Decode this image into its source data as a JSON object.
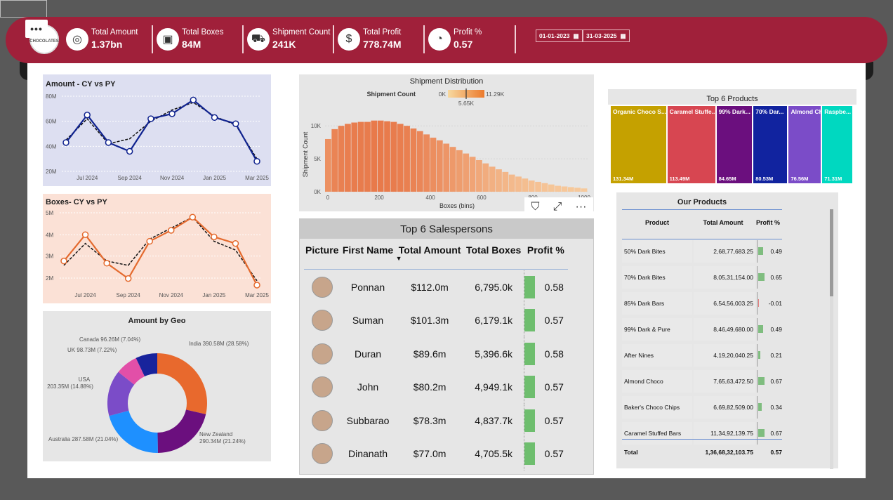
{
  "header": {
    "kpis": [
      {
        "title": "Total Amount",
        "value": "1.37bn",
        "icon": "coins-icon"
      },
      {
        "title": "Total Boxes",
        "value": "84M",
        "icon": "box-icon"
      },
      {
        "title": "Shipment Count",
        "value": "241K",
        "icon": "truck-icon"
      },
      {
        "title": "Total Profit",
        "value": "778.74M",
        "icon": "money-icon"
      },
      {
        "title": "Profit %",
        "value": "0.57",
        "icon": "gauge-icon"
      }
    ],
    "date_from": "01-01-2023",
    "date_to": "31-03-2025",
    "logo_text": "OME CHOCOLATES"
  },
  "amount_chart": {
    "title": "Amount - CY vs PY",
    "chart_data": {
      "type": "line",
      "categories": [
        "Jun 2024",
        "Jul 2024",
        "Aug 2024",
        "Sep 2024",
        "Oct 2024",
        "Nov 2024",
        "Dec 2024",
        "Jan 2025",
        "Feb 2025",
        "Mar 2025"
      ],
      "ylim": [
        20,
        80
      ],
      "yticks": [
        "20M",
        "40M",
        "60M",
        "80M"
      ],
      "xticks": [
        "Jul 2024",
        "Sep 2024",
        "Nov 2024",
        "Jan 2025",
        "Mar 2025"
      ],
      "series": [
        {
          "name": "CY",
          "values": [
            43,
            65,
            43,
            36,
            62,
            66,
            77,
            63,
            58,
            28
          ]
        },
        {
          "name": "PY",
          "values": [
            45,
            62,
            42,
            46,
            60,
            69,
            75,
            64,
            57,
            30
          ]
        }
      ]
    }
  },
  "boxes_chart": {
    "title": "Boxes- CY vs PY",
    "chart_data": {
      "type": "line",
      "categories": [
        "Jun 2024",
        "Jul 2024",
        "Aug 2024",
        "Sep 2024",
        "Oct 2024",
        "Nov 2024",
        "Dec 2024",
        "Jan 2025",
        "Feb 2025",
        "Mar 2025"
      ],
      "ylim": [
        1.7,
        5
      ],
      "yticks": [
        "2M",
        "3M",
        "4M",
        "5M"
      ],
      "xticks": [
        "Jul 2024",
        "Sep 2024",
        "Nov 2024",
        "Jan 2025",
        "Mar 2025"
      ],
      "series": [
        {
          "name": "CY",
          "values": [
            2.8,
            4.0,
            2.7,
            2.0,
            3.7,
            4.2,
            4.8,
            3.9,
            3.6,
            1.7
          ]
        },
        {
          "name": "PY",
          "values": [
            2.6,
            3.6,
            2.8,
            2.6,
            3.8,
            4.3,
            4.8,
            3.7,
            3.3,
            1.9
          ]
        }
      ]
    }
  },
  "geo_chart": {
    "title": "Amount by Geo",
    "chart_data": {
      "type": "pie",
      "slices": [
        {
          "name": "India",
          "label": "India 390.58M (28.58%)",
          "value": 390.58,
          "color": "#e8692d"
        },
        {
          "name": "New Zealand",
          "label": "New Zealand 290.34M (21.24%)",
          "value": 290.34,
          "color": "#6b0f7e"
        },
        {
          "name": "Australia",
          "label": "Australia 287.58M (21.04%)",
          "value": 287.58,
          "color": "#1e90ff"
        },
        {
          "name": "USA",
          "label": "USA 203.35M (14.88%)",
          "value": 203.35,
          "color": "#7b4cc8"
        },
        {
          "name": "UK",
          "label": "UK 98.73M (7.22%)",
          "value": 98.73,
          "color": "#e24fa8"
        },
        {
          "name": "Canada",
          "label": "Canada 96.26M (7.04%)",
          "value": 96.26,
          "color": "#18239c"
        }
      ]
    }
  },
  "shipment_chart": {
    "title": "Shipment Distribution",
    "legend_label": "Shipment Count",
    "legend_min": "0K",
    "legend_max": "11.29K",
    "legend_mid": "5.65K",
    "xlabel": "Boxes (bins)",
    "ylabel": "Shipment Count",
    "chart_data": {
      "type": "bar",
      "xticks": [
        "0",
        "200",
        "400",
        "600",
        "800",
        "1000"
      ],
      "yticks": [
        "0K",
        "5K",
        "10K"
      ],
      "ylim": [
        0,
        11.3
      ],
      "values": [
        8.0,
        9.5,
        10.0,
        10.3,
        10.5,
        10.6,
        10.6,
        10.8,
        10.8,
        10.7,
        10.6,
        10.3,
        10.0,
        9.6,
        9.2,
        8.7,
        8.2,
        7.8,
        7.3,
        6.8,
        6.3,
        5.8,
        5.3,
        4.8,
        4.3,
        3.8,
        3.4,
        3.0,
        2.6,
        2.3,
        2.0,
        1.7,
        1.5,
        1.3,
        1.1,
        0.9,
        0.8,
        0.7,
        0.6,
        0.5
      ]
    }
  },
  "top6_products": {
    "title": "Top 6 Products",
    "chart_data": {
      "type": "treemap",
      "items": [
        {
          "name": "Organic Choco S...",
          "value": 131.34,
          "label": "131.34M",
          "color": "#c5a100"
        },
        {
          "name": "Caramel Stuffe...",
          "value": 113.49,
          "label": "113.49M",
          "color": "#d74651"
        },
        {
          "name": "99% Dark...",
          "value": 84.65,
          "label": "84.65M",
          "color": "#6b0f7e"
        },
        {
          "name": "70% Dar...",
          "value": 80.53,
          "label": "80.53M",
          "color": "#11239f"
        },
        {
          "name": "Almond Ch...",
          "value": 76.56,
          "label": "76.56M",
          "color": "#7b4cc8"
        },
        {
          "name": "Raspbe...",
          "value": 71.31,
          "label": "71.31M",
          "color": "#00d8c0"
        }
      ]
    }
  },
  "salespersons": {
    "title": "Top 6 Salespersons",
    "columns": [
      "Picture",
      "First Name",
      "Total Amount",
      "Total Boxes",
      "Profit %"
    ],
    "rows": [
      {
        "name": "Ponnan",
        "amount": "$112.0m",
        "boxes": "6,795.0k",
        "profit": "0.58"
      },
      {
        "name": "Suman",
        "amount": "$101.3m",
        "boxes": "6,179.1k",
        "profit": "0.57"
      },
      {
        "name": "Duran",
        "amount": "$89.6m",
        "boxes": "5,396.6k",
        "profit": "0.58"
      },
      {
        "name": "John",
        "amount": "$80.2m",
        "boxes": "4,949.1k",
        "profit": "0.57"
      },
      {
        "name": "Subbarao",
        "amount": "$78.3m",
        "boxes": "4,837.7k",
        "profit": "0.57"
      },
      {
        "name": "Dinanath",
        "amount": "$77.0m",
        "boxes": "4,705.5k",
        "profit": "0.57"
      }
    ]
  },
  "products": {
    "title": "Our Products",
    "columns": [
      "Product",
      "Total Amount",
      "Profit %"
    ],
    "rows": [
      {
        "name": "50% Dark Bites",
        "amount": "2,68,77,683.25",
        "profit": "0.49",
        "pv": 0.49
      },
      {
        "name": "70% Dark Bites",
        "amount": "8,05,31,154.00",
        "profit": "0.65",
        "pv": 0.65
      },
      {
        "name": "85% Dark Bars",
        "amount": "6,54,56,003.25",
        "profit": "-0.01",
        "pv": -0.01
      },
      {
        "name": "99% Dark & Pure",
        "amount": "8,46,49,680.00",
        "profit": "0.49",
        "pv": 0.49
      },
      {
        "name": "After Nines",
        "amount": "4,19,20,040.25",
        "profit": "0.21",
        "pv": 0.21
      },
      {
        "name": "Almond Choco",
        "amount": "7,65,63,472.50",
        "profit": "0.67",
        "pv": 0.67
      },
      {
        "name": "Baker's Choco Chips",
        "amount": "6,69,82,509.00",
        "profit": "0.34",
        "pv": 0.34
      },
      {
        "name": "Caramel Stuffed Bars",
        "amount": "11,34,92,139.75",
        "profit": "0.67",
        "pv": 0.67
      }
    ],
    "total_label": "Total",
    "total_amount": "1,36,68,32,103.75",
    "total_profit": "0.57"
  }
}
